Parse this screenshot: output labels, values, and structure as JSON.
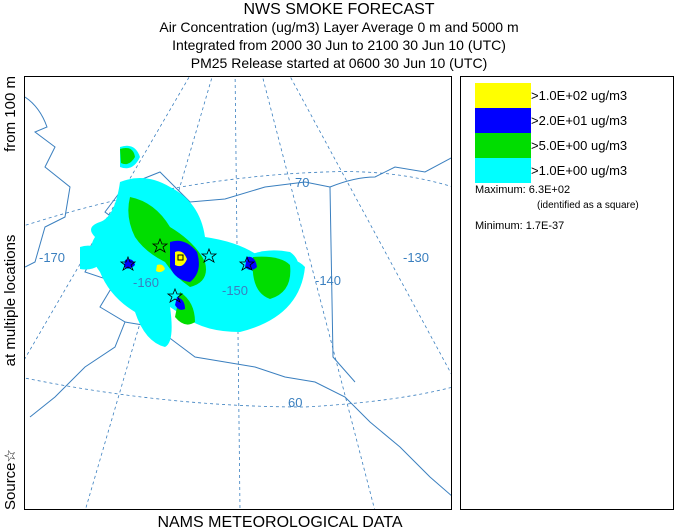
{
  "header": {
    "title": "NWS SMOKE FORECAST",
    "line1": "Air Concentration (ug/m3) Layer Average    0 m and  5000 m",
    "line2": "Integrated from 2000 30 Jun to 2100 30 Jun 10 (UTC)",
    "line3": "PM25 Release started at 0600 30 Jun 10 (UTC)"
  },
  "side_label": {
    "source": "Source☆",
    "multiple": "at multiple locations",
    "from": "from    100 m"
  },
  "footer": {
    "met_data": "NAMS METEOROLOGICAL DATA"
  },
  "map": {
    "lon_labels": [
      "-170",
      "-160",
      "-150",
      "-140",
      "-130"
    ],
    "lat_labels": [
      "70",
      "60"
    ],
    "colors": {
      "coast": "#3a7fbf",
      "grid": "#3a7fbf",
      "level1": "#00ffff",
      "level2": "#00dd00",
      "level3": "#0000ff",
      "level4": "#ffff00"
    }
  },
  "legend": {
    "items": [
      {
        "label": ">1.0E+02 ug/m3",
        "color": "#ffff00"
      },
      {
        "label": ">2.0E+01 ug/m3",
        "color": "#0000ff"
      },
      {
        "label": ">5.0E+00 ug/m3",
        "color": "#00dd00"
      },
      {
        "label": ">1.0E+00 ug/m3",
        "color": "#00ffff"
      }
    ],
    "maximum": "Maximum: 6.3E+02",
    "maximum_note": "(identified as a square)",
    "minimum": "Minimum: 1.7E-37"
  }
}
